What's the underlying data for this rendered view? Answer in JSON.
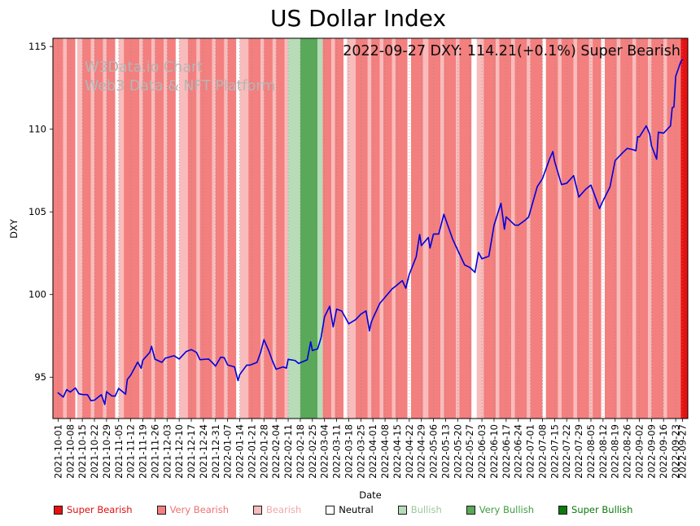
{
  "annotation": "2022-09-27 DXY: 114.21(+0.1%) Super Bearish",
  "watermark": {
    "line1": "W3Data.io Chart",
    "line2": "Web3 Data & NFT Platform"
  },
  "legend": {
    "items": [
      {
        "key": "super_bearish",
        "label": "Super Bearish",
        "swatch": "#e81010",
        "text_color": "#dd1111"
      },
      {
        "key": "very_bearish",
        "label": "Very Bearish",
        "swatch": "#f37f7f",
        "text_color": "#ee7272"
      },
      {
        "key": "bearish",
        "label": "Bearish",
        "swatch": "#f8bcbc",
        "text_color": "#f0a8a8"
      },
      {
        "key": "neutral",
        "label": "Neutral",
        "swatch": "#ffffff",
        "text_color": "#000000"
      },
      {
        "key": "bullish",
        "label": "Bullish",
        "swatch": "#b7dcb7",
        "text_color": "#9cc79c"
      },
      {
        "key": "very_bullish",
        "label": "Very Bullish",
        "swatch": "#5aa85a",
        "text_color": "#3f9e3f"
      },
      {
        "key": "super_bullish",
        "label": "Super Bullish",
        "swatch": "#0a7a0a",
        "text_color": "#0a7a0a"
      }
    ]
  },
  "chart_data": {
    "type": "line",
    "title": "US Dollar Index",
    "xlabel": "Date",
    "ylabel": "DXY",
    "ylim": [
      92.5,
      115.5
    ],
    "x_range": [
      "2021-09-28",
      "2022-09-30"
    ],
    "y_ticks": [
      95,
      100,
      105,
      110,
      115
    ],
    "x_ticks": [
      "2021-10-01",
      "2021-10-08",
      "2021-10-15",
      "2021-10-22",
      "2021-10-29",
      "2021-11-05",
      "2021-11-12",
      "2021-11-19",
      "2021-11-26",
      "2021-12-03",
      "2021-12-10",
      "2021-12-17",
      "2021-12-24",
      "2021-12-31",
      "2022-01-07",
      "2022-01-14",
      "2022-01-21",
      "2022-01-28",
      "2022-02-04",
      "2022-02-11",
      "2022-02-18",
      "2022-02-25",
      "2022-03-04",
      "2022-03-11",
      "2022-03-18",
      "2022-03-25",
      "2022-04-01",
      "2022-04-08",
      "2022-04-15",
      "2022-04-22",
      "2022-04-29",
      "2022-05-06",
      "2022-05-13",
      "2022-05-20",
      "2022-05-27",
      "2022-06-03",
      "2022-06-10",
      "2022-06-17",
      "2022-06-24",
      "2022-07-01",
      "2022-07-08",
      "2022-07-15",
      "2022-07-22",
      "2022-07-29",
      "2022-08-05",
      "2022-08-12",
      "2022-08-19",
      "2022-08-26",
      "2022-09-02",
      "2022-09-09",
      "2022-09-16",
      "2022-09-23",
      "2022-09-27"
    ],
    "line_color": "#0000dd",
    "band_colors": {
      "super_bearish": "#e81010",
      "very_bearish": "#f37f7f",
      "bearish": "#f8bcbc",
      "neutral": "#ffffff",
      "bullish": "#b7dcb7",
      "very_bullish": "#5aa85a",
      "super_bullish": "#0a7a0a"
    },
    "background_bands": [
      [
        "2021-09-28",
        "2021-10-04",
        "very_bearish"
      ],
      [
        "2021-10-04",
        "2021-10-06",
        "bearish"
      ],
      [
        "2021-10-06",
        "2021-10-11",
        "very_bearish"
      ],
      [
        "2021-10-11",
        "2021-10-12",
        "neutral"
      ],
      [
        "2021-10-12",
        "2021-10-15",
        "bearish"
      ],
      [
        "2021-10-15",
        "2021-10-20",
        "very_bearish"
      ],
      [
        "2021-10-20",
        "2021-10-22",
        "bearish"
      ],
      [
        "2021-10-22",
        "2021-10-27",
        "very_bearish"
      ],
      [
        "2021-10-27",
        "2021-10-29",
        "bearish"
      ],
      [
        "2021-10-29",
        "2021-11-03",
        "very_bearish"
      ],
      [
        "2021-11-03",
        "2021-11-05",
        "neutral"
      ],
      [
        "2021-11-05",
        "2021-11-08",
        "bearish"
      ],
      [
        "2021-11-08",
        "2021-11-17",
        "very_bearish"
      ],
      [
        "2021-11-17",
        "2021-11-19",
        "bearish"
      ],
      [
        "2021-11-19",
        "2021-11-24",
        "very_bearish"
      ],
      [
        "2021-11-24",
        "2021-11-26",
        "bearish"
      ],
      [
        "2021-11-26",
        "2021-12-01",
        "very_bearish"
      ],
      [
        "2021-12-01",
        "2021-12-03",
        "bearish"
      ],
      [
        "2021-12-03",
        "2021-12-08",
        "very_bearish"
      ],
      [
        "2021-12-08",
        "2021-12-10",
        "neutral"
      ],
      [
        "2021-12-10",
        "2021-12-15",
        "bearish"
      ],
      [
        "2021-12-15",
        "2021-12-20",
        "very_bearish"
      ],
      [
        "2021-12-20",
        "2021-12-22",
        "bearish"
      ],
      [
        "2021-12-22",
        "2021-12-29",
        "very_bearish"
      ],
      [
        "2021-12-29",
        "2021-12-31",
        "bearish"
      ],
      [
        "2021-12-31",
        "2022-01-05",
        "very_bearish"
      ],
      [
        "2022-01-05",
        "2022-01-07",
        "bearish"
      ],
      [
        "2022-01-07",
        "2022-01-12",
        "very_bearish"
      ],
      [
        "2022-01-12",
        "2022-01-14",
        "neutral"
      ],
      [
        "2022-01-14",
        "2022-01-19",
        "bearish"
      ],
      [
        "2022-01-19",
        "2022-01-26",
        "very_bearish"
      ],
      [
        "2022-01-26",
        "2022-01-28",
        "bearish"
      ],
      [
        "2022-01-28",
        "2022-02-02",
        "very_bearish"
      ],
      [
        "2022-02-02",
        "2022-02-04",
        "bearish"
      ],
      [
        "2022-02-04",
        "2022-02-09",
        "very_bearish"
      ],
      [
        "2022-02-09",
        "2022-02-11",
        "bearish"
      ],
      [
        "2022-02-11",
        "2022-02-18",
        "bullish"
      ],
      [
        "2022-02-18",
        "2022-02-28",
        "very_bullish"
      ],
      [
        "2022-02-28",
        "2022-03-03",
        "bullish"
      ],
      [
        "2022-03-03",
        "2022-03-08",
        "very_bearish"
      ],
      [
        "2022-03-08",
        "2022-03-10",
        "bearish"
      ],
      [
        "2022-03-10",
        "2022-03-15",
        "very_bearish"
      ],
      [
        "2022-03-15",
        "2022-03-17",
        "neutral"
      ],
      [
        "2022-03-17",
        "2022-03-22",
        "bearish"
      ],
      [
        "2022-03-22",
        "2022-03-29",
        "very_bearish"
      ],
      [
        "2022-03-29",
        "2022-03-31",
        "bearish"
      ],
      [
        "2022-03-31",
        "2022-04-05",
        "very_bearish"
      ],
      [
        "2022-04-05",
        "2022-04-07",
        "bearish"
      ],
      [
        "2022-04-07",
        "2022-04-12",
        "very_bearish"
      ],
      [
        "2022-04-12",
        "2022-04-14",
        "bearish"
      ],
      [
        "2022-04-14",
        "2022-04-21",
        "very_bearish"
      ],
      [
        "2022-04-21",
        "2022-04-23",
        "neutral"
      ],
      [
        "2022-04-23",
        "2022-04-30",
        "very_bearish"
      ],
      [
        "2022-04-30",
        "2022-05-03",
        "bearish"
      ],
      [
        "2022-05-03",
        "2022-05-10",
        "very_bearish"
      ],
      [
        "2022-05-10",
        "2022-05-12",
        "bearish"
      ],
      [
        "2022-05-12",
        "2022-05-19",
        "very_bearish"
      ],
      [
        "2022-05-19",
        "2022-05-21",
        "bearish"
      ],
      [
        "2022-05-21",
        "2022-05-28",
        "very_bearish"
      ],
      [
        "2022-05-28",
        "2022-05-31",
        "neutral"
      ],
      [
        "2022-05-31",
        "2022-06-04",
        "bearish"
      ],
      [
        "2022-06-04",
        "2022-06-11",
        "very_bearish"
      ],
      [
        "2022-06-11",
        "2022-06-13",
        "bearish"
      ],
      [
        "2022-06-13",
        "2022-06-20",
        "very_bearish"
      ],
      [
        "2022-06-20",
        "2022-06-22",
        "bearish"
      ],
      [
        "2022-06-22",
        "2022-06-29",
        "very_bearish"
      ],
      [
        "2022-06-29",
        "2022-07-01",
        "bearish"
      ],
      [
        "2022-07-01",
        "2022-07-08",
        "very_bearish"
      ],
      [
        "2022-07-08",
        "2022-07-10",
        "neutral"
      ],
      [
        "2022-07-10",
        "2022-07-17",
        "very_bearish"
      ],
      [
        "2022-07-17",
        "2022-07-19",
        "bearish"
      ],
      [
        "2022-07-19",
        "2022-07-26",
        "very_bearish"
      ],
      [
        "2022-07-26",
        "2022-07-28",
        "bearish"
      ],
      [
        "2022-07-28",
        "2022-08-04",
        "very_bearish"
      ],
      [
        "2022-08-04",
        "2022-08-06",
        "bearish"
      ],
      [
        "2022-08-06",
        "2022-08-11",
        "very_bearish"
      ],
      [
        "2022-08-11",
        "2022-08-13",
        "neutral"
      ],
      [
        "2022-08-13",
        "2022-08-20",
        "very_bearish"
      ],
      [
        "2022-08-20",
        "2022-08-22",
        "bearish"
      ],
      [
        "2022-08-22",
        "2022-08-29",
        "very_bearish"
      ],
      [
        "2022-08-29",
        "2022-08-31",
        "bearish"
      ],
      [
        "2022-08-31",
        "2022-09-07",
        "very_bearish"
      ],
      [
        "2022-09-07",
        "2022-09-09",
        "bearish"
      ],
      [
        "2022-09-09",
        "2022-09-16",
        "very_bearish"
      ],
      [
        "2022-09-16",
        "2022-09-18",
        "bearish"
      ],
      [
        "2022-09-18",
        "2022-09-26",
        "very_bearish"
      ],
      [
        "2022-09-26",
        "2022-09-30",
        "super_bearish"
      ]
    ],
    "series": [
      {
        "name": "DXY",
        "points": [
          [
            "2021-10-01",
            94.05
          ],
          [
            "2021-10-04",
            93.8
          ],
          [
            "2021-10-06",
            94.25
          ],
          [
            "2021-10-08",
            94.1
          ],
          [
            "2021-10-11",
            94.35
          ],
          [
            "2021-10-13",
            94.0
          ],
          [
            "2021-10-15",
            93.95
          ],
          [
            "2021-10-18",
            93.94
          ],
          [
            "2021-10-20",
            93.58
          ],
          [
            "2021-10-22",
            93.61
          ],
          [
            "2021-10-26",
            93.94
          ],
          [
            "2021-10-28",
            93.35
          ],
          [
            "2021-10-29",
            94.12
          ],
          [
            "2021-11-01",
            93.87
          ],
          [
            "2021-11-03",
            93.85
          ],
          [
            "2021-11-05",
            94.32
          ],
          [
            "2021-11-09",
            93.97
          ],
          [
            "2021-11-10",
            94.86
          ],
          [
            "2021-11-12",
            95.13
          ],
          [
            "2021-11-16",
            95.91
          ],
          [
            "2021-11-18",
            95.54
          ],
          [
            "2021-11-19",
            96.03
          ],
          [
            "2021-11-23",
            96.5
          ],
          [
            "2021-11-24",
            96.87
          ],
          [
            "2021-11-26",
            96.09
          ],
          [
            "2021-11-30",
            95.9
          ],
          [
            "2021-12-02",
            96.15
          ],
          [
            "2021-12-07",
            96.3
          ],
          [
            "2021-12-10",
            96.1
          ],
          [
            "2021-12-14",
            96.55
          ],
          [
            "2021-12-17",
            96.67
          ],
          [
            "2021-12-20",
            96.5
          ],
          [
            "2021-12-22",
            96.06
          ],
          [
            "2021-12-27",
            96.1
          ],
          [
            "2021-12-29",
            95.9
          ],
          [
            "2021-12-31",
            95.67
          ],
          [
            "2022-01-03",
            96.21
          ],
          [
            "2022-01-05",
            96.18
          ],
          [
            "2022-01-07",
            95.74
          ],
          [
            "2022-01-11",
            95.62
          ],
          [
            "2022-01-13",
            94.79
          ],
          [
            "2022-01-14",
            95.16
          ],
          [
            "2022-01-18",
            95.73
          ],
          [
            "2022-01-20",
            95.73
          ],
          [
            "2022-01-24",
            95.9
          ],
          [
            "2022-01-26",
            96.48
          ],
          [
            "2022-01-28",
            97.27
          ],
          [
            "2022-01-31",
            96.54
          ],
          [
            "2022-02-02",
            95.96
          ],
          [
            "2022-02-04",
            95.48
          ],
          [
            "2022-02-08",
            95.62
          ],
          [
            "2022-02-10",
            95.55
          ],
          [
            "2022-02-11",
            96.08
          ],
          [
            "2022-02-15",
            96.01
          ],
          [
            "2022-02-17",
            95.83
          ],
          [
            "2022-02-22",
            96.05
          ],
          [
            "2022-02-24",
            97.14
          ],
          [
            "2022-02-25",
            96.61
          ],
          [
            "2022-02-28",
            96.71
          ],
          [
            "2022-03-02",
            97.38
          ],
          [
            "2022-03-04",
            98.65
          ],
          [
            "2022-03-07",
            99.29
          ],
          [
            "2022-03-09",
            98.04
          ],
          [
            "2022-03-11",
            99.12
          ],
          [
            "2022-03-14",
            99.0
          ],
          [
            "2022-03-16",
            98.62
          ],
          [
            "2022-03-18",
            98.23
          ],
          [
            "2022-03-22",
            98.48
          ],
          [
            "2022-03-25",
            98.81
          ],
          [
            "2022-03-28",
            99.01
          ],
          [
            "2022-03-30",
            97.8
          ],
          [
            "2022-03-31",
            98.31
          ],
          [
            "2022-04-01",
            98.57
          ],
          [
            "2022-04-05",
            99.47
          ],
          [
            "2022-04-08",
            99.84
          ],
          [
            "2022-04-12",
            100.33
          ],
          [
            "2022-04-14",
            100.5
          ],
          [
            "2022-04-18",
            100.84
          ],
          [
            "2022-04-20",
            100.38
          ],
          [
            "2022-04-22",
            101.22
          ],
          [
            "2022-04-26",
            102.28
          ],
          [
            "2022-04-28",
            103.63
          ],
          [
            "2022-04-29",
            102.96
          ],
          [
            "2022-05-03",
            103.45
          ],
          [
            "2022-05-04",
            102.81
          ],
          [
            "2022-05-06",
            103.66
          ],
          [
            "2022-05-09",
            103.66
          ],
          [
            "2022-05-12",
            104.85
          ],
          [
            "2022-05-13",
            104.56
          ],
          [
            "2022-05-17",
            103.37
          ],
          [
            "2022-05-19",
            102.91
          ],
          [
            "2022-05-24",
            101.79
          ],
          [
            "2022-05-27",
            101.64
          ],
          [
            "2022-05-30",
            101.34
          ],
          [
            "2022-06-01",
            102.54
          ],
          [
            "2022-06-03",
            102.16
          ],
          [
            "2022-06-07",
            102.32
          ],
          [
            "2022-06-10",
            104.19
          ],
          [
            "2022-06-14",
            105.52
          ],
          [
            "2022-06-16",
            103.95
          ],
          [
            "2022-06-17",
            104.7
          ],
          [
            "2022-06-22",
            104.2
          ],
          [
            "2022-06-24",
            104.19
          ],
          [
            "2022-06-28",
            104.5
          ],
          [
            "2022-06-30",
            104.69
          ],
          [
            "2022-07-05",
            106.53
          ],
          [
            "2022-07-08",
            107.01
          ],
          [
            "2022-07-12",
            108.17
          ],
          [
            "2022-07-14",
            108.65
          ],
          [
            "2022-07-15",
            108.06
          ],
          [
            "2022-07-19",
            106.65
          ],
          [
            "2022-07-22",
            106.73
          ],
          [
            "2022-07-26",
            107.19
          ],
          [
            "2022-07-28",
            106.35
          ],
          [
            "2022-07-29",
            105.9
          ],
          [
            "2022-08-02",
            106.37
          ],
          [
            "2022-08-05",
            106.62
          ],
          [
            "2022-08-10",
            105.2
          ],
          [
            "2022-08-12",
            105.67
          ],
          [
            "2022-08-16",
            106.5
          ],
          [
            "2022-08-19",
            108.1
          ],
          [
            "2022-08-23",
            108.54
          ],
          [
            "2022-08-26",
            108.84
          ],
          [
            "2022-08-29",
            108.77
          ],
          [
            "2022-08-31",
            108.7
          ],
          [
            "2022-09-01",
            109.55
          ],
          [
            "2022-09-02",
            109.53
          ],
          [
            "2022-09-06",
            110.2
          ],
          [
            "2022-09-08",
            109.7
          ],
          [
            "2022-09-09",
            109.0
          ],
          [
            "2022-09-12",
            108.19
          ],
          [
            "2022-09-13",
            109.82
          ],
          [
            "2022-09-16",
            109.76
          ],
          [
            "2022-09-20",
            110.2
          ],
          [
            "2022-09-21",
            111.3
          ],
          [
            "2022-09-22",
            111.35
          ],
          [
            "2022-09-23",
            113.19
          ],
          [
            "2022-09-26",
            114.1
          ],
          [
            "2022-09-27",
            114.21
          ]
        ]
      }
    ]
  }
}
